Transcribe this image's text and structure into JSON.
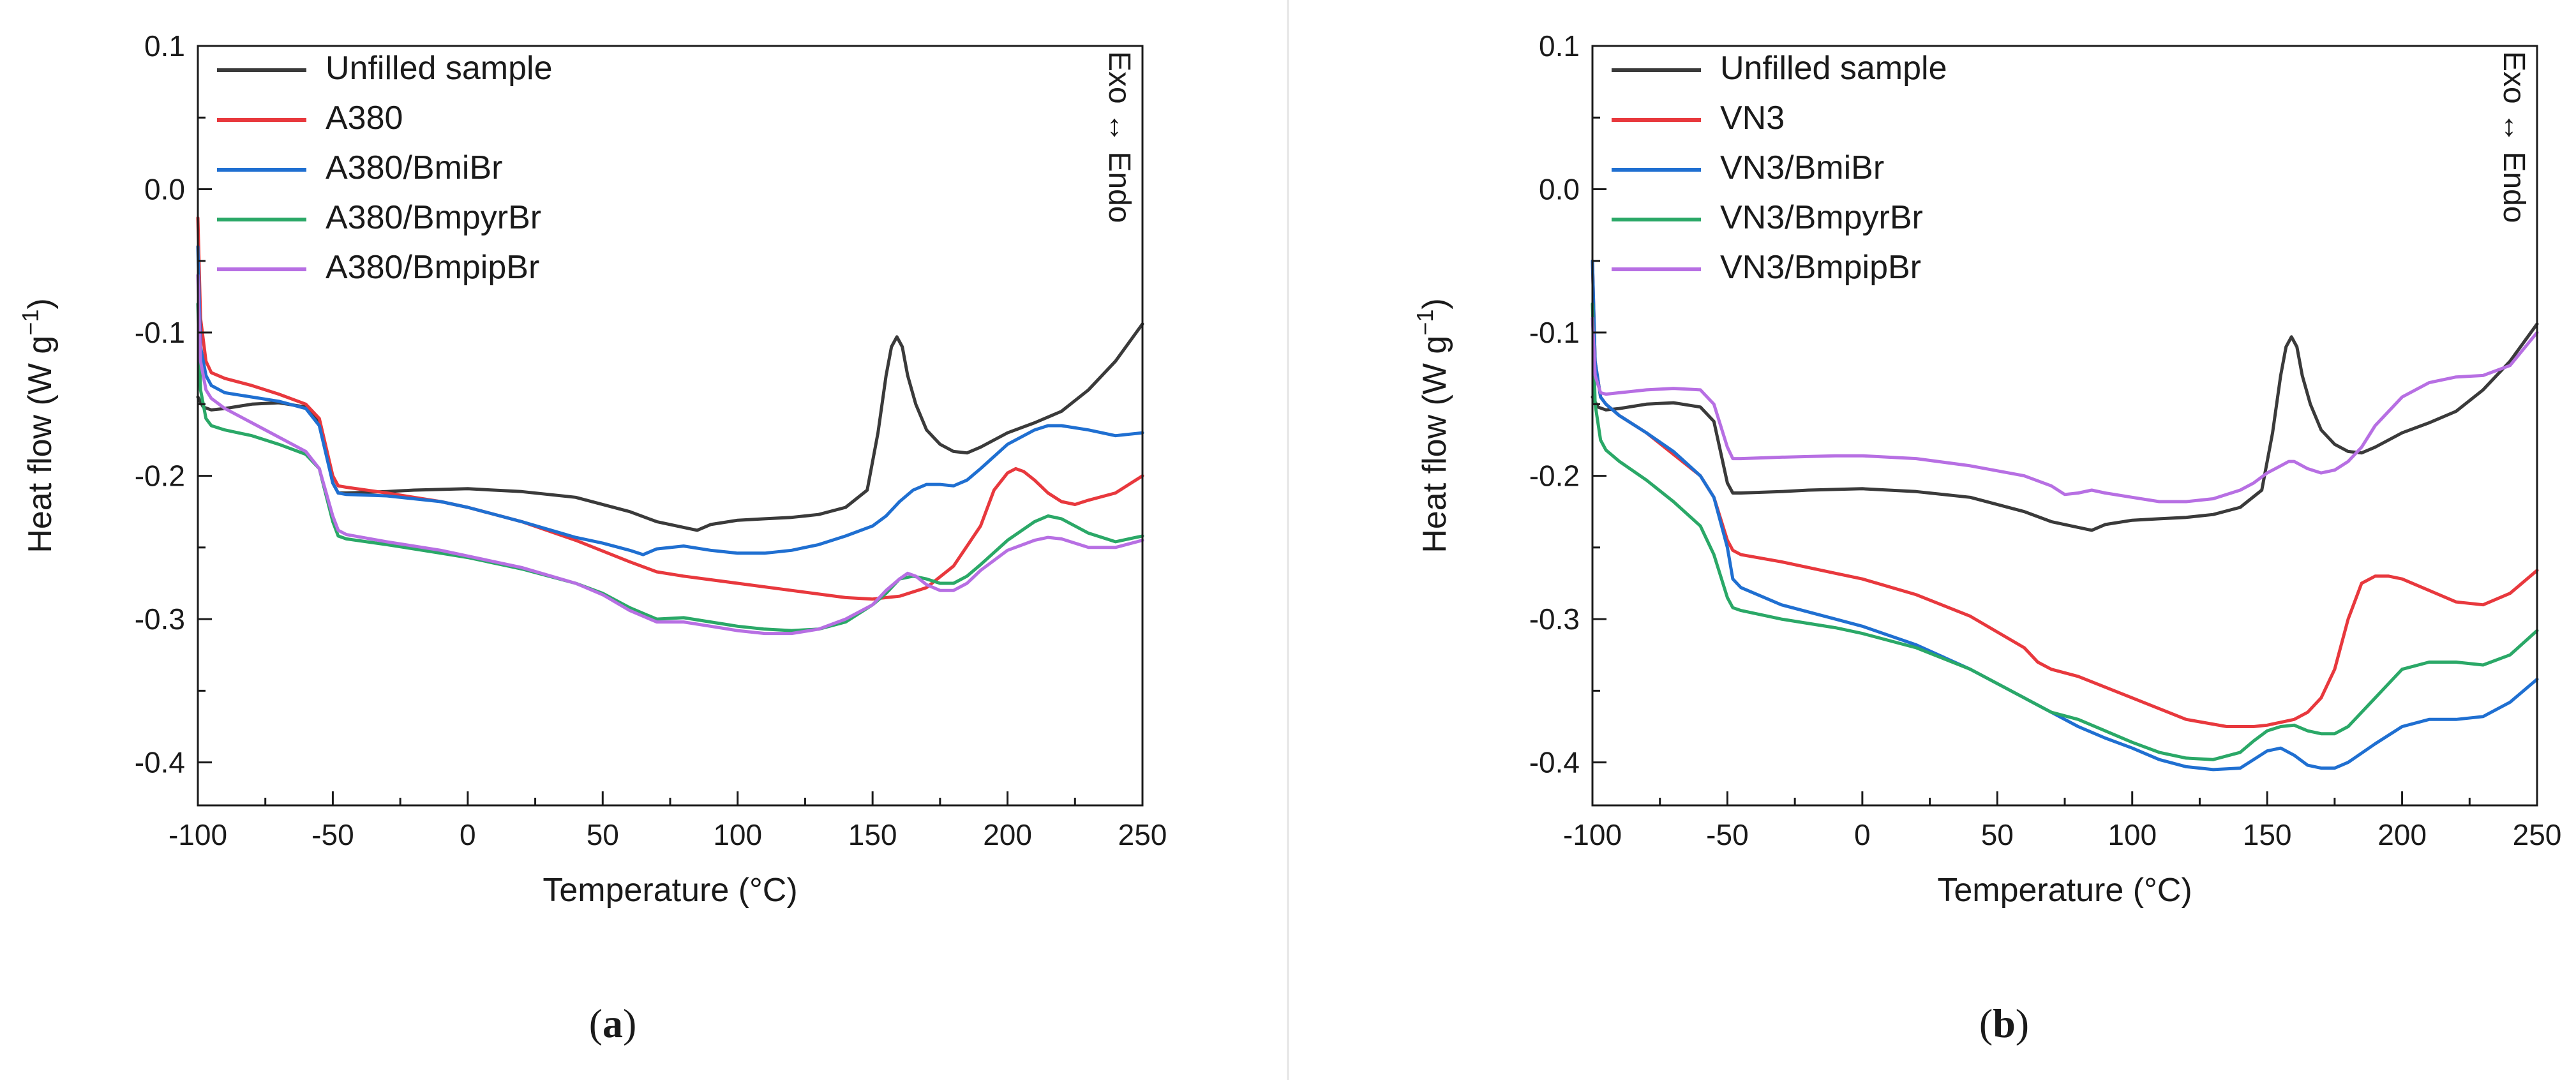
{
  "chart_data": [
    {
      "type": "line",
      "panel_label": "a",
      "xlabel": "Temperature (°C)",
      "ylabel": "Heat flow (W g",
      "ylabel_sup": "−1",
      "ylabel_close": ")",
      "annotation": "Exo ↔ Endo",
      "xlim": [
        -100,
        250
      ],
      "ylim": [
        -0.43,
        0.1
      ],
      "xticks": [
        -100,
        -50,
        0,
        50,
        100,
        150,
        200,
        250
      ],
      "yticks": [
        0.1,
        0.0,
        -0.1,
        -0.2,
        -0.3,
        -0.4
      ],
      "xtick_labels": [
        "-100",
        "-50",
        "0",
        "50",
        "100",
        "150",
        "200",
        "250"
      ],
      "ytick_labels": [
        "0.1",
        "0.0",
        "-0.1",
        "-0.2",
        "-0.3",
        "-0.4"
      ],
      "legend_position": "top-left",
      "series": [
        {
          "name": "Unfilled sample",
          "color": "#3a3a3a",
          "x": [
            -100,
            -98,
            -95,
            -90,
            -80,
            -70,
            -60,
            -55,
            -50,
            -48,
            -45,
            -30,
            -20,
            0,
            20,
            40,
            60,
            70,
            80,
            85,
            90,
            100,
            110,
            120,
            130,
            140,
            148,
            152,
            155,
            157,
            159,
            161,
            163,
            166,
            170,
            175,
            180,
            185,
            190,
            200,
            210,
            220,
            230,
            240,
            250
          ],
          "y": [
            -0.145,
            -0.152,
            -0.154,
            -0.153,
            -0.15,
            -0.149,
            -0.152,
            -0.162,
            -0.205,
            -0.212,
            -0.212,
            -0.211,
            -0.21,
            -0.209,
            -0.211,
            -0.215,
            -0.225,
            -0.232,
            -0.236,
            -0.238,
            -0.234,
            -0.231,
            -0.23,
            -0.229,
            -0.227,
            -0.222,
            -0.21,
            -0.17,
            -0.13,
            -0.11,
            -0.103,
            -0.11,
            -0.13,
            -0.15,
            -0.168,
            -0.178,
            -0.183,
            -0.184,
            -0.18,
            -0.17,
            -0.163,
            -0.155,
            -0.14,
            -0.12,
            -0.094
          ]
        },
        {
          "name": "A380",
          "color": "#e8383d",
          "x": [
            -100,
            -99,
            -97,
            -95,
            -90,
            -80,
            -70,
            -60,
            -55,
            -50,
            -48,
            -45,
            -30,
            -10,
            0,
            20,
            40,
            60,
            70,
            80,
            100,
            120,
            140,
            150,
            160,
            170,
            180,
            190,
            195,
            200,
            203,
            206,
            210,
            215,
            220,
            225,
            230,
            240,
            250
          ],
          "y": [
            -0.02,
            -0.09,
            -0.12,
            -0.128,
            -0.132,
            -0.137,
            -0.143,
            -0.15,
            -0.16,
            -0.2,
            -0.207,
            -0.208,
            -0.212,
            -0.218,
            -0.222,
            -0.232,
            -0.245,
            -0.26,
            -0.267,
            -0.27,
            -0.275,
            -0.28,
            -0.285,
            -0.286,
            -0.284,
            -0.278,
            -0.263,
            -0.235,
            -0.21,
            -0.198,
            -0.195,
            -0.197,
            -0.203,
            -0.212,
            -0.218,
            -0.22,
            -0.217,
            -0.212,
            -0.2
          ]
        },
        {
          "name": "A380/BmiBr",
          "color": "#1f6fd1",
          "x": [
            -100,
            -99,
            -97,
            -95,
            -90,
            -80,
            -70,
            -60,
            -55,
            -50,
            -48,
            -45,
            -30,
            -10,
            0,
            20,
            40,
            50,
            60,
            65,
            70,
            80,
            90,
            100,
            110,
            120,
            130,
            140,
            150,
            155,
            160,
            165,
            170,
            175,
            180,
            185,
            190,
            200,
            210,
            215,
            220,
            230,
            240,
            250
          ],
          "y": [
            -0.04,
            -0.11,
            -0.13,
            -0.137,
            -0.142,
            -0.145,
            -0.148,
            -0.153,
            -0.165,
            -0.205,
            -0.212,
            -0.213,
            -0.214,
            -0.218,
            -0.222,
            -0.232,
            -0.243,
            -0.247,
            -0.252,
            -0.255,
            -0.251,
            -0.249,
            -0.252,
            -0.254,
            -0.254,
            -0.252,
            -0.248,
            -0.242,
            -0.235,
            -0.228,
            -0.218,
            -0.21,
            -0.206,
            -0.206,
            -0.207,
            -0.203,
            -0.195,
            -0.178,
            -0.168,
            -0.165,
            -0.165,
            -0.168,
            -0.172,
            -0.17
          ]
        },
        {
          "name": "A380/BmpyrBr",
          "color": "#2aa867",
          "x": [
            -100,
            -99,
            -97,
            -95,
            -90,
            -80,
            -70,
            -60,
            -55,
            -50,
            -48,
            -45,
            -30,
            -10,
            0,
            20,
            40,
            50,
            60,
            70,
            80,
            90,
            100,
            110,
            120,
            130,
            140,
            150,
            155,
            160,
            165,
            170,
            175,
            180,
            185,
            190,
            200,
            210,
            215,
            220,
            230,
            240,
            250
          ],
          "y": [
            -0.08,
            -0.14,
            -0.16,
            -0.165,
            -0.168,
            -0.172,
            -0.178,
            -0.185,
            -0.195,
            -0.232,
            -0.242,
            -0.244,
            -0.248,
            -0.254,
            -0.257,
            -0.265,
            -0.275,
            -0.282,
            -0.292,
            -0.3,
            -0.299,
            -0.302,
            -0.305,
            -0.307,
            -0.308,
            -0.307,
            -0.302,
            -0.29,
            -0.282,
            -0.272,
            -0.27,
            -0.272,
            -0.275,
            -0.275,
            -0.27,
            -0.262,
            -0.245,
            -0.232,
            -0.228,
            -0.23,
            -0.24,
            -0.246,
            -0.242
          ]
        },
        {
          "name": "A380/BmpipBr",
          "color": "#b76fe3",
          "x": [
            -100,
            -99,
            -97,
            -95,
            -90,
            -80,
            -70,
            -60,
            -55,
            -50,
            -48,
            -45,
            -30,
            -10,
            0,
            20,
            40,
            50,
            60,
            70,
            80,
            90,
            100,
            110,
            120,
            130,
            140,
            150,
            155,
            160,
            163,
            166,
            170,
            175,
            180,
            185,
            190,
            200,
            210,
            215,
            220,
            230,
            240,
            250
          ],
          "y": [
            -0.06,
            -0.12,
            -0.14,
            -0.146,
            -0.153,
            -0.163,
            -0.173,
            -0.183,
            -0.195,
            -0.228,
            -0.238,
            -0.241,
            -0.246,
            -0.252,
            -0.256,
            -0.264,
            -0.275,
            -0.283,
            -0.294,
            -0.302,
            -0.302,
            -0.305,
            -0.308,
            -0.31,
            -0.31,
            -0.307,
            -0.3,
            -0.29,
            -0.28,
            -0.272,
            -0.268,
            -0.27,
            -0.276,
            -0.28,
            -0.28,
            -0.275,
            -0.266,
            -0.252,
            -0.245,
            -0.243,
            -0.244,
            -0.25,
            -0.25,
            -0.245
          ]
        }
      ]
    },
    {
      "type": "line",
      "panel_label": "b",
      "xlabel": "Temperature (°C)",
      "ylabel": "Heat flow (W g",
      "ylabel_sup": "−1",
      "ylabel_close": ")",
      "annotation": "Exo ↔ Endo",
      "xlim": [
        -100,
        250
      ],
      "ylim": [
        -0.43,
        0.1
      ],
      "xticks": [
        -100,
        -50,
        0,
        50,
        100,
        150,
        200,
        250
      ],
      "yticks": [
        0.1,
        0.0,
        -0.1,
        -0.2,
        -0.3,
        -0.4
      ],
      "xtick_labels": [
        "-100",
        "-50",
        "0",
        "50",
        "100",
        "150",
        "200",
        "250"
      ],
      "ytick_labels": [
        "0.1",
        "0.0",
        "-0.1",
        "-0.2",
        "-0.3",
        "-0.4"
      ],
      "legend_position": "top-left",
      "series": [
        {
          "name": "Unfilled sample",
          "color": "#3a3a3a",
          "x": [
            -100,
            -98,
            -95,
            -90,
            -80,
            -70,
            -60,
            -55,
            -50,
            -48,
            -45,
            -30,
            -20,
            0,
            20,
            40,
            60,
            70,
            80,
            85,
            90,
            100,
            110,
            120,
            130,
            140,
            148,
            152,
            155,
            157,
            159,
            161,
            163,
            166,
            170,
            175,
            180,
            185,
            190,
            200,
            210,
            220,
            230,
            240,
            250
          ],
          "y": [
            -0.145,
            -0.152,
            -0.154,
            -0.153,
            -0.15,
            -0.149,
            -0.152,
            -0.162,
            -0.205,
            -0.212,
            -0.212,
            -0.211,
            -0.21,
            -0.209,
            -0.211,
            -0.215,
            -0.225,
            -0.232,
            -0.236,
            -0.238,
            -0.234,
            -0.231,
            -0.23,
            -0.229,
            -0.227,
            -0.222,
            -0.21,
            -0.17,
            -0.13,
            -0.11,
            -0.103,
            -0.11,
            -0.13,
            -0.15,
            -0.168,
            -0.178,
            -0.183,
            -0.184,
            -0.18,
            -0.17,
            -0.163,
            -0.155,
            -0.14,
            -0.12,
            -0.094
          ]
        },
        {
          "name": "VN3",
          "color": "#e8383d",
          "x": [
            -100,
            -99,
            -97,
            -95,
            -90,
            -80,
            -70,
            -60,
            -55,
            -50,
            -48,
            -45,
            -30,
            -10,
            0,
            20,
            40,
            60,
            65,
            70,
            80,
            100,
            120,
            135,
            145,
            150,
            155,
            160,
            165,
            170,
            175,
            180,
            185,
            190,
            195,
            200,
            210,
            220,
            230,
            240,
            250
          ],
          "y": [
            -0.05,
            -0.12,
            -0.145,
            -0.15,
            -0.158,
            -0.17,
            -0.185,
            -0.2,
            -0.215,
            -0.245,
            -0.252,
            -0.255,
            -0.26,
            -0.268,
            -0.272,
            -0.283,
            -0.298,
            -0.32,
            -0.33,
            -0.335,
            -0.34,
            -0.355,
            -0.37,
            -0.375,
            -0.375,
            -0.374,
            -0.372,
            -0.37,
            -0.365,
            -0.355,
            -0.335,
            -0.3,
            -0.275,
            -0.27,
            -0.27,
            -0.272,
            -0.28,
            -0.288,
            -0.29,
            -0.282,
            -0.266
          ]
        },
        {
          "name": "VN3/BmiBr",
          "color": "#1f6fd1",
          "x": [
            -100,
            -99,
            -97,
            -95,
            -90,
            -80,
            -70,
            -60,
            -55,
            -50,
            -48,
            -45,
            -30,
            -10,
            0,
            20,
            40,
            60,
            70,
            80,
            90,
            100,
            110,
            120,
            130,
            140,
            145,
            150,
            155,
            160,
            165,
            170,
            175,
            180,
            190,
            200,
            210,
            220,
            230,
            240,
            250
          ],
          "y": [
            -0.05,
            -0.12,
            -0.145,
            -0.15,
            -0.158,
            -0.17,
            -0.183,
            -0.2,
            -0.215,
            -0.25,
            -0.272,
            -0.278,
            -0.29,
            -0.3,
            -0.305,
            -0.318,
            -0.335,
            -0.355,
            -0.365,
            -0.375,
            -0.383,
            -0.39,
            -0.398,
            -0.403,
            -0.405,
            -0.404,
            -0.398,
            -0.392,
            -0.39,
            -0.395,
            -0.402,
            -0.404,
            -0.404,
            -0.4,
            -0.387,
            -0.375,
            -0.37,
            -0.37,
            -0.368,
            -0.358,
            -0.342
          ]
        },
        {
          "name": "VN3/BmpyrBr",
          "color": "#2aa867",
          "x": [
            -100,
            -99,
            -97,
            -95,
            -90,
            -80,
            -70,
            -60,
            -55,
            -50,
            -48,
            -45,
            -30,
            -10,
            0,
            20,
            40,
            60,
            70,
            80,
            90,
            100,
            110,
            120,
            130,
            140,
            145,
            150,
            155,
            160,
            165,
            170,
            175,
            180,
            190,
            200,
            210,
            220,
            230,
            240,
            250
          ],
          "y": [
            -0.08,
            -0.15,
            -0.175,
            -0.182,
            -0.19,
            -0.203,
            -0.218,
            -0.235,
            -0.255,
            -0.285,
            -0.292,
            -0.294,
            -0.3,
            -0.306,
            -0.31,
            -0.32,
            -0.335,
            -0.355,
            -0.365,
            -0.37,
            -0.378,
            -0.386,
            -0.393,
            -0.397,
            -0.398,
            -0.393,
            -0.385,
            -0.378,
            -0.375,
            -0.374,
            -0.378,
            -0.38,
            -0.38,
            -0.375,
            -0.355,
            -0.335,
            -0.33,
            -0.33,
            -0.332,
            -0.325,
            -0.308
          ]
        },
        {
          "name": "VN3/BmpipBr",
          "color": "#b76fe3",
          "x": [
            -100,
            -99,
            -97,
            -95,
            -90,
            -80,
            -70,
            -60,
            -55,
            -50,
            -48,
            -45,
            -30,
            -10,
            0,
            20,
            40,
            60,
            70,
            75,
            80,
            85,
            90,
            100,
            110,
            120,
            130,
            140,
            145,
            150,
            155,
            158,
            160,
            165,
            170,
            175,
            180,
            185,
            190,
            200,
            210,
            220,
            230,
            240,
            250
          ],
          "y": [
            -0.09,
            -0.13,
            -0.142,
            -0.143,
            -0.142,
            -0.14,
            -0.139,
            -0.14,
            -0.15,
            -0.18,
            -0.188,
            -0.188,
            -0.187,
            -0.186,
            -0.186,
            -0.188,
            -0.193,
            -0.2,
            -0.207,
            -0.213,
            -0.212,
            -0.21,
            -0.212,
            -0.215,
            -0.218,
            -0.218,
            -0.216,
            -0.21,
            -0.205,
            -0.198,
            -0.193,
            -0.19,
            -0.19,
            -0.195,
            -0.198,
            -0.196,
            -0.19,
            -0.18,
            -0.165,
            -0.145,
            -0.135,
            -0.131,
            -0.13,
            -0.123,
            -0.1
          ]
        }
      ]
    }
  ]
}
